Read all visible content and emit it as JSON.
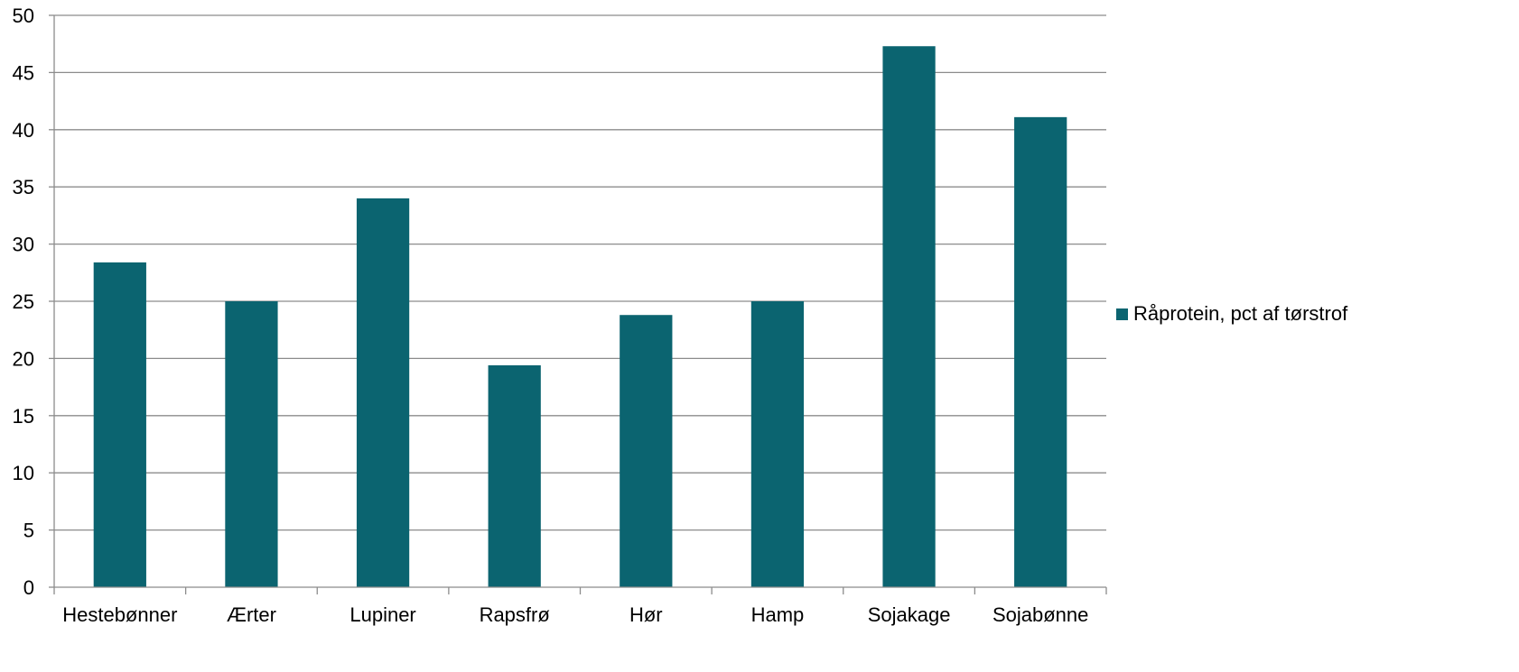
{
  "chart_data": {
    "type": "bar",
    "categories": [
      "Hestebønner",
      "Ærter",
      "Lupiner",
      "Rapsfrø",
      "Hør",
      "Hamp",
      "Sojakage",
      "Sojabønne"
    ],
    "series": [
      {
        "name": "Råprotein, pct af tørstrof",
        "values": [
          28.4,
          25.0,
          34.0,
          19.4,
          23.8,
          25.0,
          47.3,
          41.1
        ],
        "color": "#0b6470"
      }
    ],
    "ylim": [
      0,
      50
    ],
    "yticks": [
      0,
      5,
      10,
      15,
      20,
      25,
      30,
      35,
      40,
      45,
      50
    ],
    "grid": true,
    "legend_position": "right"
  }
}
